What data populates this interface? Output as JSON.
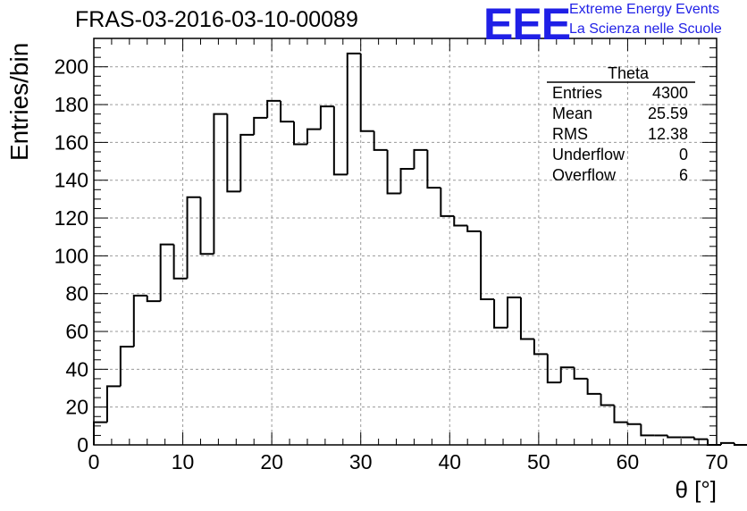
{
  "title": "FRAS-03-2016-03-10-00089",
  "logo": {
    "mark": "EEE",
    "line1": "Extreme Energy Events",
    "line2": "La Scienza nelle Scuole",
    "color": "#1f1fe6"
  },
  "stats": {
    "name": "Theta",
    "rows": [
      {
        "label": "Entries",
        "value": "4300"
      },
      {
        "label": "Mean",
        "value": "25.59"
      },
      {
        "label": "RMS",
        "value": "12.38"
      },
      {
        "label": "Underflow",
        "value": "0"
      },
      {
        "label": "Overflow",
        "value": "6"
      }
    ]
  },
  "chart_data": {
    "type": "histogram",
    "xlabel": "θ [°]",
    "ylabel": "Entries/bin",
    "xlim": [
      0,
      70
    ],
    "ylim": [
      0,
      215
    ],
    "x_ticks": [
      0,
      10,
      20,
      30,
      40,
      50,
      60,
      70
    ],
    "y_ticks": [
      0,
      20,
      40,
      60,
      80,
      100,
      120,
      140,
      160,
      180,
      200
    ],
    "grid": true,
    "bin_width": 1.5,
    "bin_edges_start": 0,
    "values": [
      12,
      31,
      52,
      79,
      76,
      106,
      88,
      131,
      101,
      175,
      134,
      164,
      173,
      182,
      171,
      159,
      167,
      179,
      143,
      207,
      166,
      156,
      133,
      146,
      156,
      136,
      121,
      116,
      113,
      77,
      62,
      78,
      56,
      48,
      33,
      41,
      35,
      27,
      21,
      12,
      11,
      5,
      5,
      4,
      4,
      3,
      0,
      1,
      0
    ]
  }
}
